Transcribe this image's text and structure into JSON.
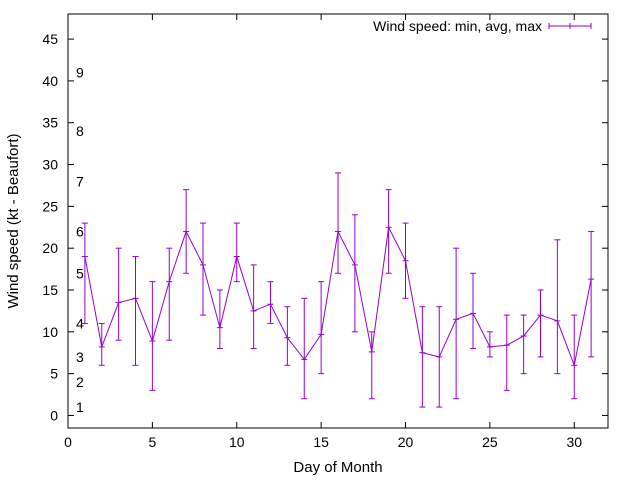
{
  "chart_data": {
    "type": "line",
    "title": "",
    "xlabel": "Day of Month",
    "ylabel": "Wind speed (kt - Beaufort)",
    "xlim": [
      0,
      32
    ],
    "ylim": [
      -1.5,
      48
    ],
    "xticks": [
      0,
      5,
      10,
      15,
      20,
      25,
      30
    ],
    "yticks": [
      0,
      5,
      10,
      15,
      20,
      25,
      30,
      35,
      40,
      45
    ],
    "grid": false,
    "legend_position": "top-right",
    "series": [
      {
        "name": "Wind speed: min, avg, max",
        "color": "#9400d3",
        "points": [
          {
            "x": 1,
            "min": 11,
            "avg": 19,
            "max": 23
          },
          {
            "x": 2,
            "min": 6,
            "avg": 8.2,
            "max": 11
          },
          {
            "x": 3,
            "min": 9,
            "avg": 13.5,
            "max": 20
          },
          {
            "x": 4,
            "min": 6,
            "avg": 14,
            "max": 19
          },
          {
            "x": 5,
            "min": 3,
            "avg": 8.9,
            "max": 16
          },
          {
            "x": 6,
            "min": 9,
            "avg": 16,
            "max": 20
          },
          {
            "x": 7,
            "min": 17,
            "avg": 22,
            "max": 27
          },
          {
            "x": 8,
            "min": 12,
            "avg": 18,
            "max": 23
          },
          {
            "x": 9,
            "min": 8,
            "avg": 10.5,
            "max": 15
          },
          {
            "x": 10,
            "min": 16,
            "avg": 19,
            "max": 23
          },
          {
            "x": 11,
            "min": 8,
            "avg": 12.5,
            "max": 18
          },
          {
            "x": 12,
            "min": 11,
            "avg": 13.3,
            "max": 16
          },
          {
            "x": 13,
            "min": 6,
            "avg": 9.3,
            "max": 13
          },
          {
            "x": 14,
            "min": 2,
            "avg": 6.7,
            "max": 14
          },
          {
            "x": 15,
            "min": 5,
            "avg": 9.7,
            "max": 16
          },
          {
            "x": 16,
            "min": 17,
            "avg": 22,
            "max": 29
          },
          {
            "x": 17,
            "min": 10,
            "avg": 18,
            "max": 24
          },
          {
            "x": 18,
            "min": 2,
            "avg": 7.6,
            "max": 10
          },
          {
            "x": 19,
            "min": 17,
            "avg": 22.5,
            "max": 27
          },
          {
            "x": 20,
            "min": 14,
            "avg": 18.5,
            "max": 23
          },
          {
            "x": 21,
            "min": 1,
            "avg": 7.5,
            "max": 13
          },
          {
            "x": 22,
            "min": 1,
            "avg": 7,
            "max": 13
          },
          {
            "x": 23,
            "min": 2,
            "avg": 11.5,
            "max": 20
          },
          {
            "x": 24,
            "min": 8,
            "avg": 12.2,
            "max": 17
          },
          {
            "x": 25,
            "min": 7,
            "avg": 8.2,
            "max": 10
          },
          {
            "x": 26,
            "min": 3,
            "avg": 8.4,
            "max": 12
          },
          {
            "x": 27,
            "min": 5,
            "avg": 9.5,
            "max": 12
          },
          {
            "x": 28,
            "min": 7,
            "avg": 12,
            "max": 15
          },
          {
            "x": 29,
            "min": 5,
            "avg": 11.3,
            "max": 21
          },
          {
            "x": 30,
            "min": 2,
            "avg": 6,
            "max": 12
          },
          {
            "x": 31,
            "min": 7,
            "avg": 16.3,
            "max": 22
          }
        ]
      }
    ],
    "annotations": [
      {
        "text": "1",
        "y": 1
      },
      {
        "text": "2",
        "y": 4
      },
      {
        "text": "3",
        "y": 7
      },
      {
        "text": "4",
        "y": 11
      },
      {
        "text": "5",
        "y": 17
      },
      {
        "text": "6",
        "y": 22
      },
      {
        "text": "7",
        "y": 28
      },
      {
        "text": "8",
        "y": 34
      },
      {
        "text": "9",
        "y": 41
      }
    ]
  }
}
